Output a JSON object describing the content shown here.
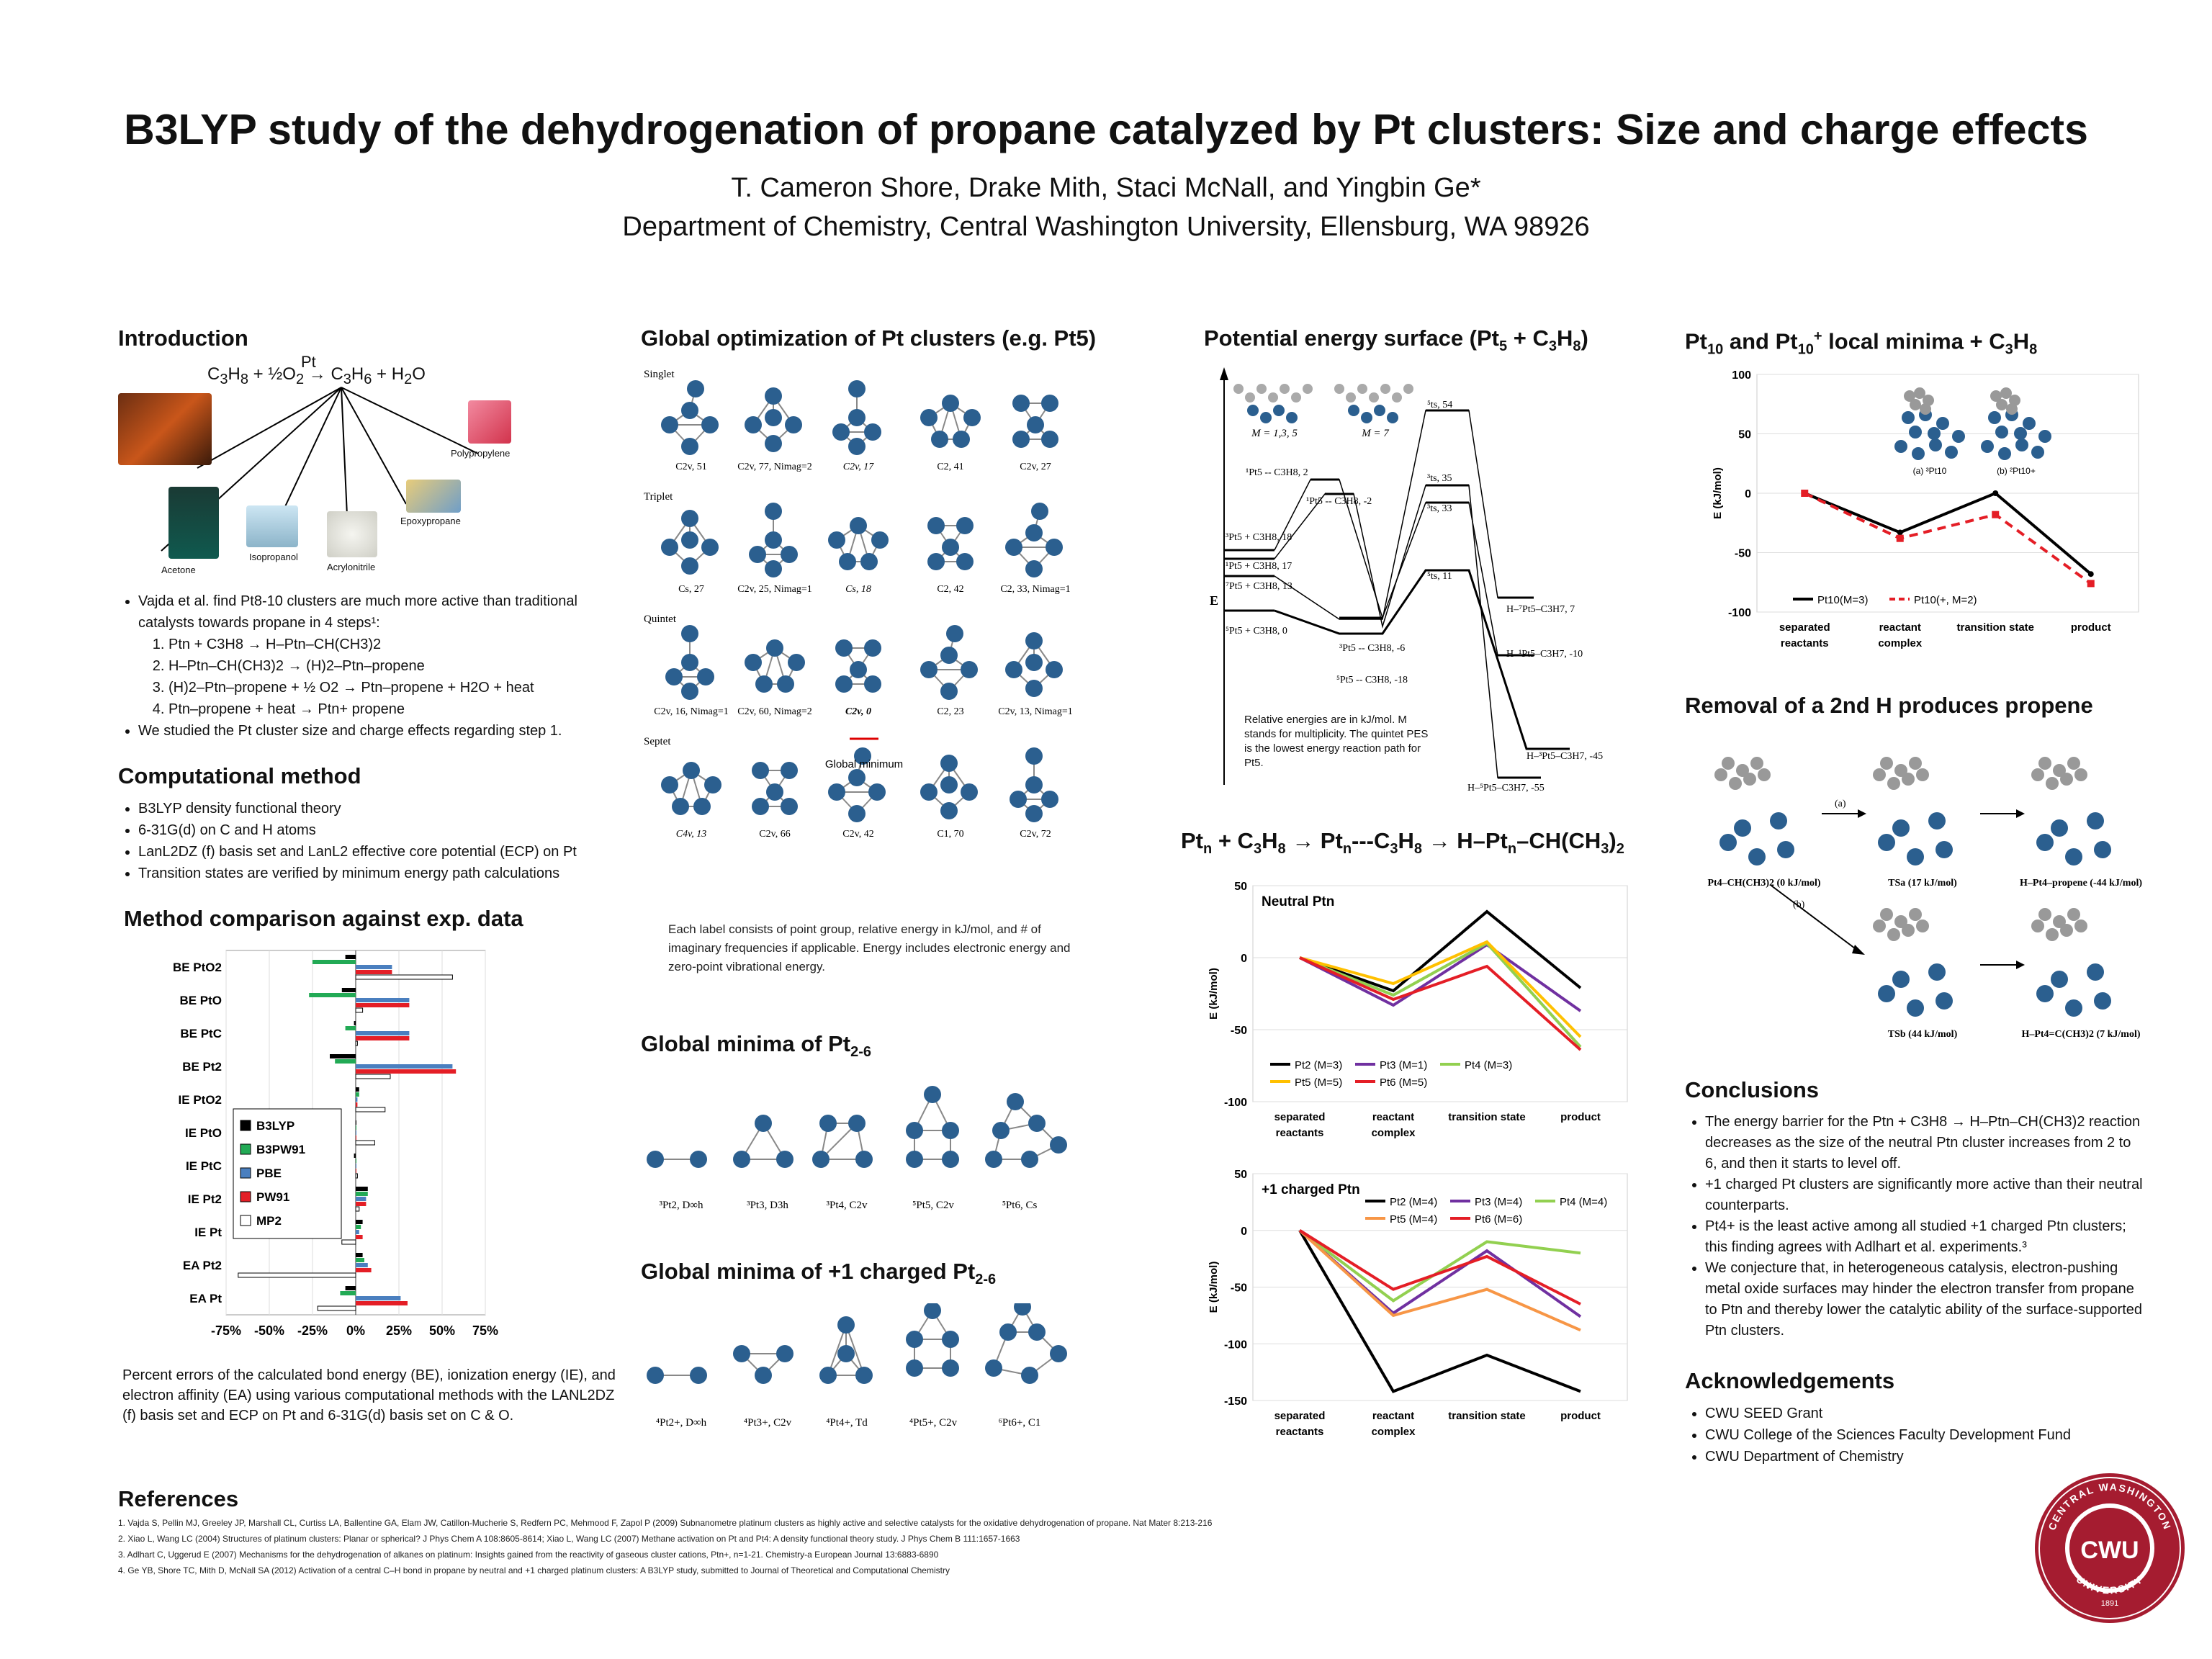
{
  "header": {
    "title": "B3LYP study of the dehydrogenation of propane catalyzed by Pt clusters: Size and charge effects",
    "authors": "T. Cameron Shore, Drake Mith, Staci McNall, and Yingbin Ge*",
    "affiliation": "Department of Chemistry, Central Washington University, Ellensburg, WA 98926"
  },
  "intro": {
    "heading": "Introduction",
    "reaction": "C3H8 + ½O2 → C3H6 + H2O",
    "catalyst": "Pt",
    "products": [
      "Acetone",
      "Isopropanol",
      "Acrylonitrile",
      "Epoxypropane",
      "Polypropylene"
    ],
    "bullet1": "Vajda et al. find Pt8-10 clusters are much more active than traditional catalysts towards propane in 4 steps¹:",
    "steps": [
      "Ptn + C3H8 → H–Ptn–CH(CH3)2",
      "H–Ptn–CH(CH3)2 → (H)2–Ptn–propene",
      "(H)2–Ptn–propene + ½ O2 → Ptn–propene + H2O + heat",
      "Ptn–propene + heat → Ptn+ propene"
    ],
    "bullet2": "We studied the Pt cluster size and charge effects regarding step 1."
  },
  "method": {
    "heading": "Computational method",
    "items": [
      "B3LYP density functional theory",
      "6-31G(d) on C and H atoms",
      "LanL2DZ (f) basis set and LanL2 effective core potential (ECP) on Pt",
      "Transition states are verified by minimum energy path calculations"
    ]
  },
  "comparison": {
    "heading": "Method comparison against exp. data",
    "caption": "Percent errors of the calculated bond energy (BE), ionization energy (IE), and electron affinity (EA) using various computational methods with the LANL2DZ (f) basis set and ECP on Pt and 6-31G(d) basis set on C & O."
  },
  "globalopt": {
    "heading": "Global optimization of Pt clusters (e.g. Pt5)",
    "rows": [
      {
        "label": "Singlet",
        "items": [
          "C2v, 51",
          "C2v, 77, Nimag=2",
          "C2v, 17",
          "C2, 41",
          "C2v, 27"
        ]
      },
      {
        "label": "Triplet",
        "items": [
          "Cs, 27",
          "C2v, 25, Nimag=1",
          "Cs, 18",
          "C2, 42",
          "C2, 33, Nimag=1"
        ]
      },
      {
        "label": "Quintet",
        "items": [
          "C2v, 16, Nimag=1",
          "C2v, 60, Nimag=2",
          "C2v, 0",
          "C2, 23",
          "C2v, 13, Nimag=1"
        ]
      },
      {
        "label": "Septet",
        "items": [
          "C4v, 13",
          "C2v, 66",
          "C2v, 42",
          "C1, 70",
          "C2v, 72"
        ]
      }
    ],
    "global_minimum": "Global minimum",
    "caption": "Each label consists of point group, relative energy in kJ/mol, and # of imaginary frequencies if applicable. Energy includes electronic energy and zero-point vibrational energy."
  },
  "minima_neutral": {
    "heading": "Global minima of Pt2-6",
    "labels": [
      "³Pt2, D∞h",
      "³Pt3, D3h",
      "³Pt4, C2v",
      "⁵Pt5, C2v",
      "⁵Pt6, Cs"
    ]
  },
  "minima_cation": {
    "heading": "Global minima of +1 charged Pt2-6",
    "labels": [
      "⁴Pt2+, D∞h",
      "⁴Pt3+, C2v",
      "⁴Pt4+, Td",
      "⁴Pt5+, C2v",
      "⁶Pt6+, C1"
    ]
  },
  "pes": {
    "heading": "Potential energy surface (Pt5 + C3H8)",
    "yaxis": "E",
    "levels": [
      "⁵ts, 54",
      "¹Pt5 -- C3H8, 2",
      "¹Pt5 -- C3H8, -2",
      "³ts, 35",
      "³ts, 33",
      "³Pt5 + C3H8, 18",
      "¹Pt5 + C3H8, 17",
      "⁷Pt5 + C3H8, 13",
      "⁵Pt5 + C3H8, 0",
      "⁵ts, 11",
      "³Pt5 -- C3H8, -6",
      "⁵Pt5 -- C3H8, -18",
      "H–⁷Pt5–C3H7, 7",
      "H–¹Pt5–C3H7, -10",
      "H–³Pt5–C3H7, -45",
      "H–⁵Pt5–C3H7, -55"
    ],
    "mult_labels": [
      "M = 1,3, 5",
      "M = 7"
    ],
    "note": "Relative energies are in kJ/mol. M stands for multiplicity. The quintet PES is the lowest energy reaction path for Pt5."
  },
  "rxn": {
    "heading": "Ptn + C3H8 → Ptn---C3H8 → H–Ptn–CH(CH3)2"
  },
  "removal": {
    "heading": "Removal of a 2nd H produces propene",
    "labels": [
      "Pt4–CH(CH3)2 (0 kJ/mol)",
      "TSa (17 kJ/mol)",
      "H–Pt4–propene (-44 kJ/mol)",
      "TSb (44 kJ/mol)",
      "H–Pt4=C(CH3)2 (7 kJ/mol)"
    ],
    "path_a": "(a)",
    "path_b": "(b)"
  },
  "conclusions": {
    "heading": "Conclusions",
    "items": [
      "The energy barrier for the Ptn + C3H8 → H–Ptn–CH(CH3)2 reaction decreases as the size of the neutral Ptn cluster increases from 2 to 6, and then it starts to level off.",
      "+1 charged Pt clusters are significantly more active than their neutral counterparts.",
      "Pt4+ is the least active among all studied +1 charged Ptn clusters; this finding agrees with Adlhart et al. experiments.³",
      "We conjecture that, in heterogeneous catalysis, electron-pushing metal oxide surfaces may hinder the electron transfer from propane to Ptn and thereby lower the catalytic ability of the surface-supported Ptn clusters."
    ]
  },
  "ack": {
    "heading": "Acknowledgements",
    "items": [
      "CWU SEED Grant",
      "CWU College of the Sciences Faculty Development Fund",
      "CWU Department of Chemistry"
    ]
  },
  "references": {
    "heading": "References",
    "items": [
      "1.  Vajda S, Pellin MJ, Greeley JP, Marshall CL, Curtiss LA, Ballentine GA, Elam JW, Catillon-Mucherie S, Redfern PC, Mehmood F, Zapol P (2009) Subnanometre platinum clusters as highly active and selective catalysts for the oxidative dehydrogenation of propane. Nat Mater 8:213-216",
      "2.  Xiao L, Wang LC (2004) Structures of platinum clusters: Planar or spherical? J Phys Chem A 108:8605-8614; Xiao L, Wang LC (2007) Methane activation on Pt and Pt4: A density functional theory study. J Phys Chem B 111:1657-1663",
      "3.  Adlhart C, Uggerud E (2007) Mechanisms for the dehydrogenation of alkanes on platinum: Insights gained from the reactivity of gaseous cluster cations, Ptn+, n=1-21. Chemistry-a European Journal 13:6883-6890",
      "4.  Ge YB, Shore TC, Mith D, McNall SA (2012) Activation of a central C–H bond in propane by neutral and +1 charged platinum clusters: A B3LYP study, submitted to Journal of Theoretical and Computational Chemistry"
    ]
  },
  "logo": {
    "top": "CENTRAL WASHINGTON",
    "center": "CWU",
    "bottom": "UNIVERSITY",
    "year": "1891"
  },
  "chart_data": [
    {
      "id": "method-errors",
      "type": "bar",
      "orientation": "horizontal",
      "categories": [
        "BE PtO2",
        "BE PtO",
        "BE PtC",
        "BE Pt2",
        "IE PtO2",
        "IE PtO",
        "IE PtC",
        "IE Pt2",
        "IE Pt",
        "EA Pt2",
        "EA Pt"
      ],
      "series": [
        {
          "name": "B3LYP",
          "color": "#000000",
          "values": [
            -6,
            -8,
            -1,
            -15,
            2,
            0,
            -1,
            7,
            4,
            4,
            -6
          ]
        },
        {
          "name": "B3PW91",
          "color": "#22aa55",
          "values": [
            -25,
            -27,
            -6,
            -12,
            2,
            0,
            0,
            7,
            3,
            5,
            -9
          ]
        },
        {
          "name": "PBE",
          "color": "#4a7fbf",
          "values": [
            21,
            31,
            31,
            56,
            1,
            0,
            0,
            6,
            2,
            7,
            26
          ]
        },
        {
          "name": "PW91",
          "color": "#e41e26",
          "values": [
            21,
            31,
            31,
            58,
            1,
            0,
            0,
            6,
            4,
            9,
            30
          ]
        },
        {
          "name": "MP2",
          "color": "#ffffff",
          "values": [
            56,
            4,
            1,
            20,
            17,
            11,
            1,
            2,
            -8,
            -68,
            -22
          ]
        }
      ],
      "xlim": [
        -75,
        75
      ],
      "xticks": [
        "-75%",
        "-50%",
        "-25%",
        "0%",
        "25%",
        "50%",
        "75%"
      ]
    },
    {
      "id": "pt10",
      "type": "line",
      "categories": [
        "separated reactants",
        "reactant complex",
        "transition state",
        "product"
      ],
      "series": [
        {
          "name": "Pt10(M=3)",
          "color": "#000000",
          "values": [
            0,
            -33,
            0,
            -68
          ]
        },
        {
          "name": "Pt10(+, M=2)",
          "color": "#e41e26",
          "dashed": true,
          "values": [
            0,
            -38,
            -18,
            -76
          ]
        }
      ],
      "ylabel": "E (kJ/mol)",
      "ylim": [
        -100,
        100
      ],
      "yticks": [
        100,
        50,
        0,
        -50,
        -100
      ],
      "insets": [
        "(a) ³Pt10",
        "(b) ²Pt10+"
      ]
    },
    {
      "id": "neutral",
      "type": "line",
      "title": "Neutral Ptn",
      "categories": [
        "separated reactants",
        "reactant complex",
        "transition state",
        "product"
      ],
      "series": [
        {
          "name": "Pt2 (M=3)",
          "color": "#000000",
          "values": [
            0,
            -23,
            32,
            -21
          ]
        },
        {
          "name": "Pt3 (M=1)",
          "color": "#7030a0",
          "values": [
            0,
            -33,
            9,
            -37
          ]
        },
        {
          "name": "Pt4 (M=3)",
          "color": "#92d050",
          "values": [
            0,
            -26,
            10,
            -62
          ]
        },
        {
          "name": "Pt5 (M=5)",
          "color": "#ffc000",
          "values": [
            0,
            -18,
            11,
            -55
          ]
        },
        {
          "name": "Pt6 (M=5)",
          "color": "#e41e26",
          "values": [
            0,
            -29,
            -6,
            -64
          ]
        }
      ],
      "ylabel": "E (kJ/mol)",
      "ylim": [
        -100,
        50
      ],
      "yticks": [
        50,
        0,
        -50,
        -100
      ]
    },
    {
      "id": "charged",
      "type": "line",
      "title": "+1 charged Ptn",
      "categories": [
        "separated reactants",
        "reactant complex",
        "transition state",
        "product"
      ],
      "series": [
        {
          "name": "Pt2 (M=4)",
          "color": "#000000",
          "values": [
            0,
            -142,
            -110,
            -142
          ]
        },
        {
          "name": "Pt3 (M=4)",
          "color": "#7030a0",
          "values": [
            0,
            -73,
            -18,
            -76
          ]
        },
        {
          "name": "Pt4 (M=4)",
          "color": "#92d050",
          "values": [
            0,
            -62,
            -10,
            -20
          ]
        },
        {
          "name": "Pt5 (M=4)",
          "color": "#f79646",
          "values": [
            0,
            -75,
            -52,
            -88
          ]
        },
        {
          "name": "Pt6 (M=6)",
          "color": "#e41e26",
          "values": [
            0,
            -52,
            -23,
            -65
          ]
        }
      ],
      "ylabel": "E (kJ/mol)",
      "ylim": [
        -150,
        50
      ],
      "yticks": [
        50,
        0,
        -50,
        -100,
        -150
      ]
    }
  ]
}
